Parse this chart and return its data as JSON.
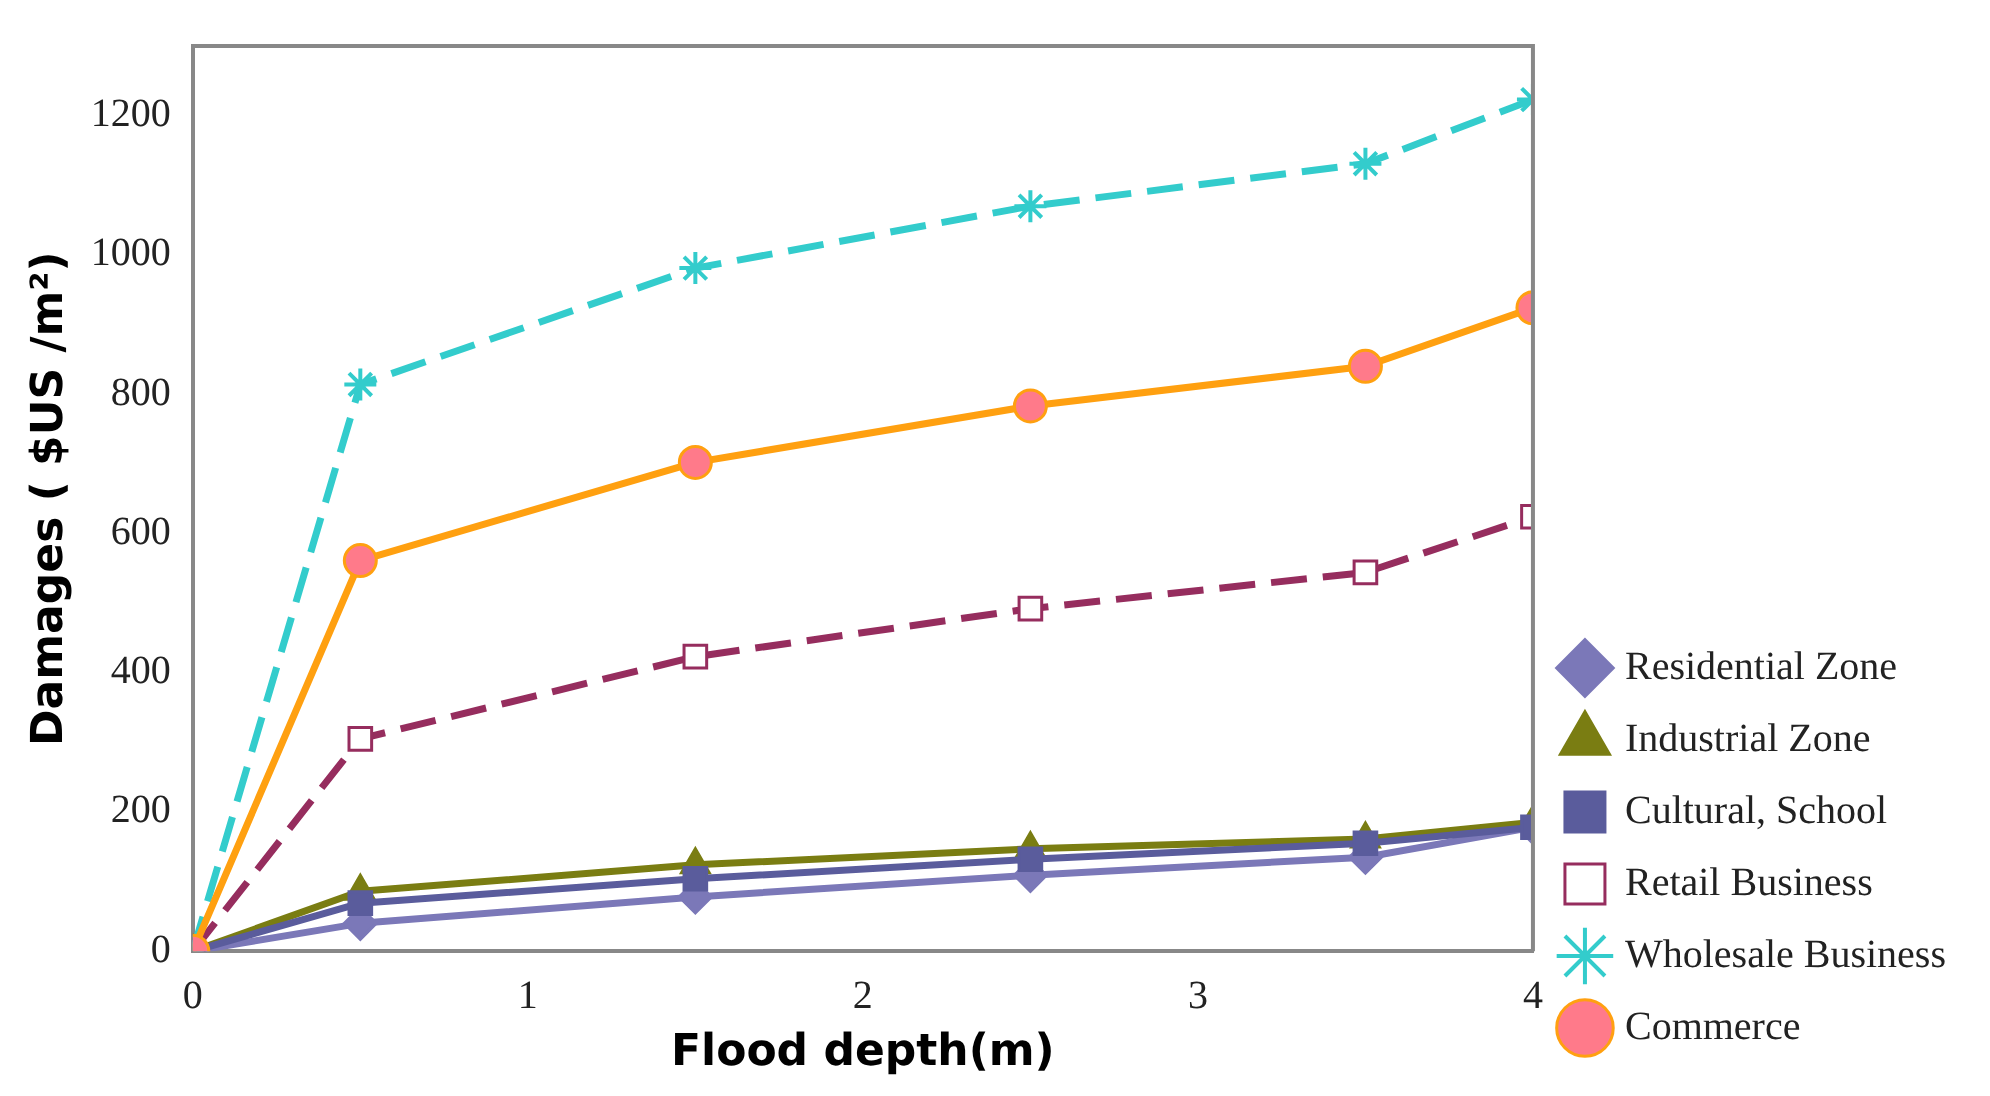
{
  "chart_data": {
    "type": "line",
    "xlabel": "Flood depth(m)",
    "ylabel": "Damages ( $US /m²)",
    "xlim": [
      0,
      4
    ],
    "xticks": [
      0,
      1,
      2,
      3,
      4
    ],
    "ylim": [
      0,
      1300
    ],
    "yticks": [
      0,
      200,
      400,
      600,
      800,
      1000,
      1200
    ],
    "grid": false,
    "legend": "right",
    "x": [
      0,
      0.5,
      1.5,
      2.5,
      3.5,
      4
    ],
    "series": [
      {
        "name": "Residential Zone",
        "color": "#7b78b8",
        "marker": "diamond",
        "line_style": "solid",
        "values": [
          0,
          40,
          78,
          109,
          135,
          178
        ]
      },
      {
        "name": "Industrial Zone",
        "color": "#7a7d12",
        "marker": "triangle",
        "line_style": "solid",
        "values": [
          0,
          86,
          124,
          147,
          161,
          185
        ]
      },
      {
        "name": "Cultural, School",
        "color": "#5a5c9c",
        "marker": "square",
        "line_style": "solid",
        "values": [
          0,
          69,
          104,
          132,
          155,
          178
        ]
      },
      {
        "name": "Retail Business",
        "color": "#962d5e",
        "marker": "square",
        "line_style": "dashed",
        "values": [
          0,
          305,
          423,
          492,
          544,
          624
        ]
      },
      {
        "name": "Wholesale Business",
        "color": "#33cccc",
        "marker": "cross",
        "line_style": "dashed",
        "values": [
          0,
          814,
          981,
          1070,
          1131,
          1223
        ]
      },
      {
        "name": "Commerce",
        "color": "#ffa010",
        "marker": "circle",
        "line_style": "solid",
        "values": [
          0,
          561,
          702,
          783,
          840,
          924
        ]
      }
    ]
  }
}
